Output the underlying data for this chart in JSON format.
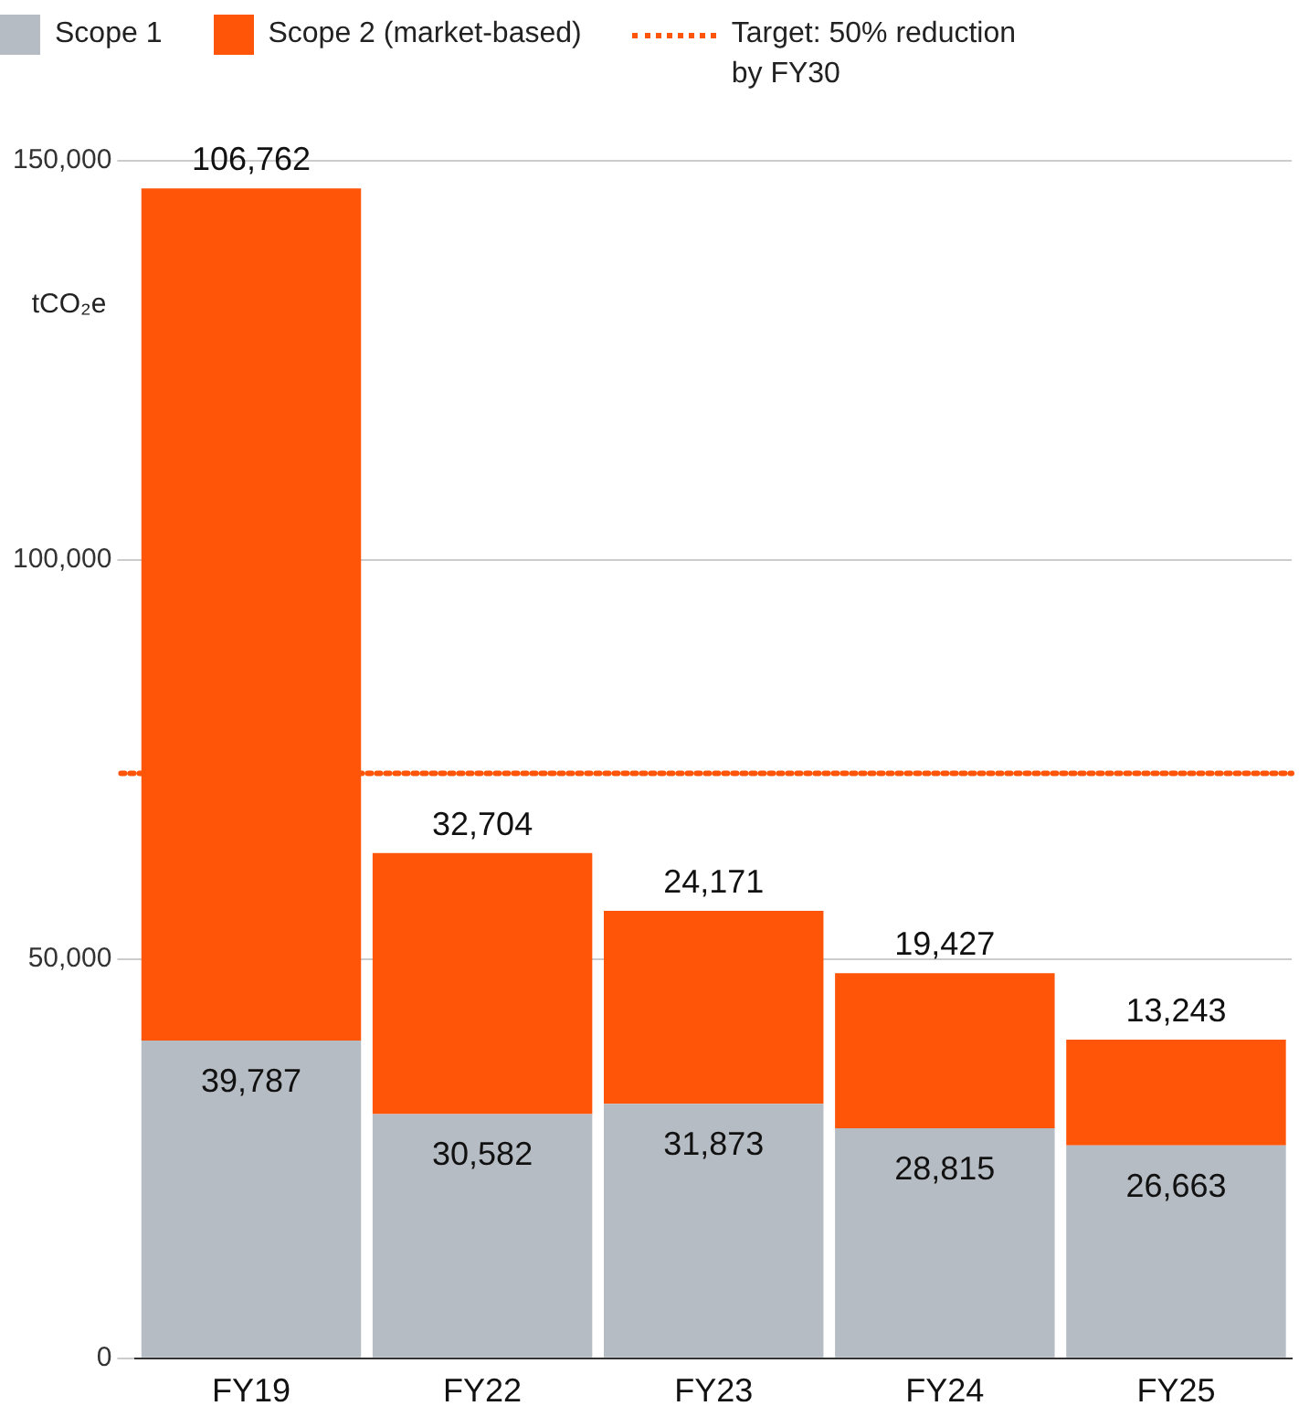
{
  "chart_data": {
    "type": "bar",
    "stacked": true,
    "ylabel": "tCO₂e",
    "categories": [
      "FY19",
      "FY22",
      "FY23",
      "FY24",
      "FY25"
    ],
    "series": [
      {
        "name": "Scope 1",
        "color": "#b6bcc3",
        "values": [
          39787,
          30582,
          31873,
          28815,
          26663
        ],
        "value_labels": [
          "39,787",
          "30,582",
          "31,873",
          "28,815",
          "26,663"
        ]
      },
      {
        "name": "Scope 2 (market-based)",
        "color": "#fe5509",
        "values": [
          106762,
          32704,
          24171,
          19427,
          13243
        ],
        "value_labels": [
          "106,762",
          "32,704",
          "24,171",
          "19,427",
          "13,243"
        ]
      }
    ],
    "ylim": [
      0,
      150000
    ],
    "yticks": [
      {
        "value": 0,
        "label": "0"
      },
      {
        "value": 50000,
        "label": "50,000"
      },
      {
        "value": 100000,
        "label": "100,000"
      },
      {
        "value": 150000,
        "label": "150,000"
      }
    ],
    "grid": "y",
    "legend": "top left",
    "ref_lines": [
      {
        "axis": "y",
        "value": 73275,
        "color": "#fe5509",
        "line_style": "dotted"
      }
    ],
    "annotations": [
      "Target: 50% reduction by FY30"
    ]
  }
}
